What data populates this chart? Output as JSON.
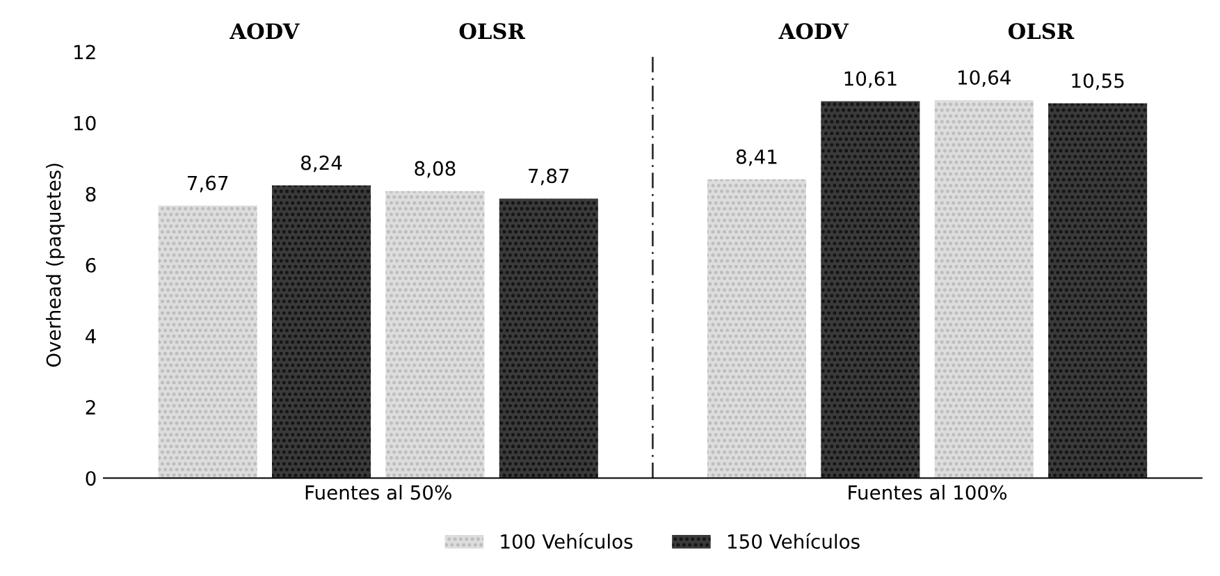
{
  "chart_data": {
    "type": "bar",
    "ylabel": "Overhead (paquetes)",
    "categories": [
      "Fuentes al 50%",
      "Fuentes al 100%"
    ],
    "series": [
      {
        "name": "100 Vehículos",
        "color": "#dddddd",
        "values": [
          7.67,
          8.41
        ],
        "value_labels": [
          "7,67",
          "8,41"
        ]
      },
      {
        "name": "150 Vehículos",
        "color": "#3a3a3a",
        "values": [
          8.24,
          10.61
        ],
        "value_labels": [
          "8,24",
          "10,61"
        ]
      },
      {
        "color": "#dddddd",
        "values": [
          8.08,
          10.64
        ],
        "value_labels": [
          "8,08",
          "10,64"
        ]
      },
      {
        "color": "#3a3a3a",
        "values": [
          7.87,
          10.55
        ],
        "value_labels": [
          "7,87",
          "10,55"
        ]
      }
    ],
    "ylim": [
      0,
      12
    ],
    "yticks": [
      0,
      2,
      4,
      6,
      8,
      10,
      12
    ],
    "grid": false,
    "legend": "bottom",
    "annotations": [
      "AODV",
      "OLSR",
      "AODV",
      "OLSR"
    ]
  }
}
